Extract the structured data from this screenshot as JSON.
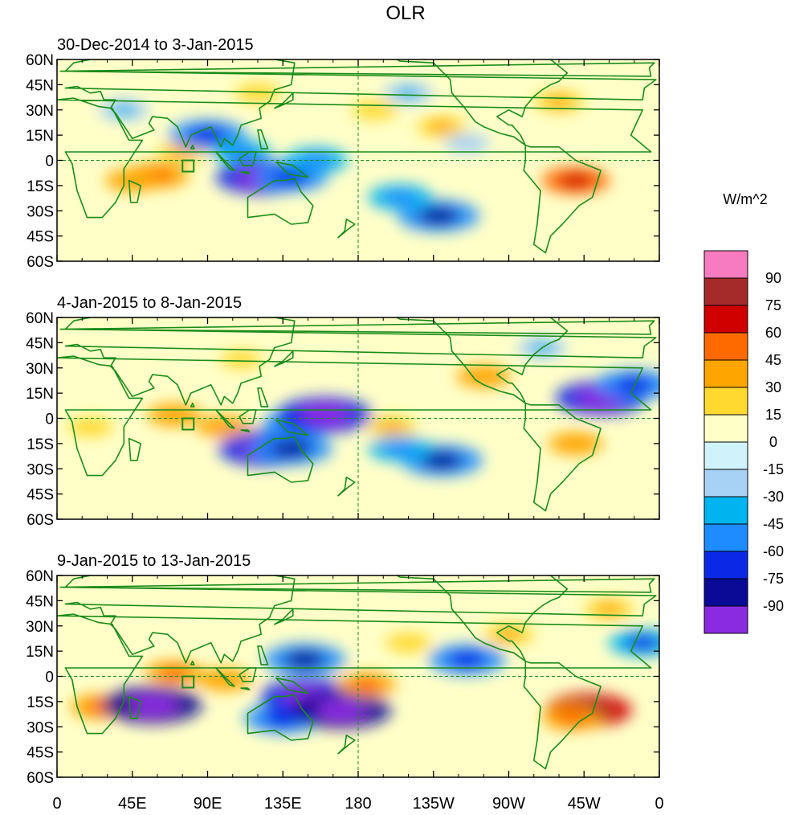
{
  "chart_data": {
    "type": "heatmap",
    "title": "OLR",
    "colorbar": {
      "title": "W/m^2",
      "levels": [
        90,
        75,
        60,
        45,
        30,
        15,
        0,
        -15,
        -30,
        -45,
        -60,
        -75,
        -90
      ],
      "colors": [
        "#f77bbf",
        "#a52a2a",
        "#d00000",
        "#ff6a00",
        "#ffa500",
        "#ffd92f",
        "#ffffc8",
        "#d0f2fb",
        "#a7d2f5",
        "#00b4f0",
        "#1e8cff",
        "#0a28e6",
        "#0a0a96",
        "#8a2be2"
      ]
    },
    "x_ticks": [
      "0",
      "45E",
      "90E",
      "135E",
      "180",
      "135W",
      "90W",
      "45W",
      "0"
    ],
    "y_ticks": [
      "60N",
      "45N",
      "30N",
      "15N",
      "0",
      "15S",
      "30S",
      "45S",
      "60S"
    ],
    "xlim": [
      0,
      360
    ],
    "ylim": [
      -60,
      60
    ],
    "panels": [
      {
        "label": "30-Dec-2014 to 3-Jan-2015",
        "anomalies": [
          {
            "lon": 60,
            "lat": -9,
            "value": 40
          },
          {
            "lon": 45,
            "lat": -12,
            "value": 30
          },
          {
            "lon": 75,
            "lat": 5,
            "value": 25
          },
          {
            "lon": 90,
            "lat": 15,
            "value": -55
          },
          {
            "lon": 110,
            "lat": 5,
            "value": -35
          },
          {
            "lon": 122,
            "lat": -10,
            "value": -70
          },
          {
            "lon": 140,
            "lat": -10,
            "value": -50
          },
          {
            "lon": 155,
            "lat": 0,
            "value": -40
          },
          {
            "lon": 190,
            "lat": 30,
            "value": 20
          },
          {
            "lon": 210,
            "lat": 40,
            "value": -25
          },
          {
            "lon": 230,
            "lat": 20,
            "value": 25
          },
          {
            "lon": 228,
            "lat": -33,
            "value": -60
          },
          {
            "lon": 205,
            "lat": -22,
            "value": -40
          },
          {
            "lon": 310,
            "lat": -12,
            "value": 45
          },
          {
            "lon": 245,
            "lat": 10,
            "value": -20
          },
          {
            "lon": 300,
            "lat": 35,
            "value": 25
          },
          {
            "lon": 40,
            "lat": 30,
            "value": -25
          },
          {
            "lon": 120,
            "lat": 40,
            "value": 20
          }
        ]
      },
      {
        "label": "4-Jan-2015 to 8-Jan-2015",
        "anomalies": [
          {
            "lon": 70,
            "lat": 2,
            "value": 30
          },
          {
            "lon": 100,
            "lat": -5,
            "value": 30
          },
          {
            "lon": 125,
            "lat": -18,
            "value": -75
          },
          {
            "lon": 140,
            "lat": -18,
            "value": -60
          },
          {
            "lon": 145,
            "lat": -3,
            "value": -50
          },
          {
            "lon": 160,
            "lat": 2,
            "value": -75
          },
          {
            "lon": 200,
            "lat": -5,
            "value": 25
          },
          {
            "lon": 230,
            "lat": -25,
            "value": -60
          },
          {
            "lon": 205,
            "lat": -18,
            "value": -40
          },
          {
            "lon": 325,
            "lat": 12,
            "value": -70
          },
          {
            "lon": 345,
            "lat": 20,
            "value": -55
          },
          {
            "lon": 255,
            "lat": 25,
            "value": 30
          },
          {
            "lon": 310,
            "lat": -15,
            "value": 30
          },
          {
            "lon": 20,
            "lat": -5,
            "value": 20
          },
          {
            "lon": 110,
            "lat": 35,
            "value": 15
          },
          {
            "lon": 290,
            "lat": 42,
            "value": -25
          }
        ]
      },
      {
        "label": "9-Jan-2015 to 13-Jan-2015",
        "anomalies": [
          {
            "lon": 70,
            "lat": 2,
            "value": 35
          },
          {
            "lon": 100,
            "lat": -2,
            "value": 30
          },
          {
            "lon": 27,
            "lat": -18,
            "value": 40
          },
          {
            "lon": 57,
            "lat": -17,
            "value": -80
          },
          {
            "lon": 135,
            "lat": -25,
            "value": -55
          },
          {
            "lon": 150,
            "lat": -12,
            "value": -75
          },
          {
            "lon": 170,
            "lat": -20,
            "value": -80
          },
          {
            "lon": 148,
            "lat": 10,
            "value": -60
          },
          {
            "lon": 185,
            "lat": -5,
            "value": 35
          },
          {
            "lon": 245,
            "lat": 10,
            "value": -55
          },
          {
            "lon": 318,
            "lat": -20,
            "value": 65
          },
          {
            "lon": 308,
            "lat": -25,
            "value": 35
          },
          {
            "lon": 350,
            "lat": 20,
            "value": -45
          },
          {
            "lon": 330,
            "lat": 40,
            "value": 25
          },
          {
            "lon": 270,
            "lat": 25,
            "value": 25
          },
          {
            "lon": 210,
            "lat": 20,
            "value": 20
          }
        ]
      }
    ]
  }
}
